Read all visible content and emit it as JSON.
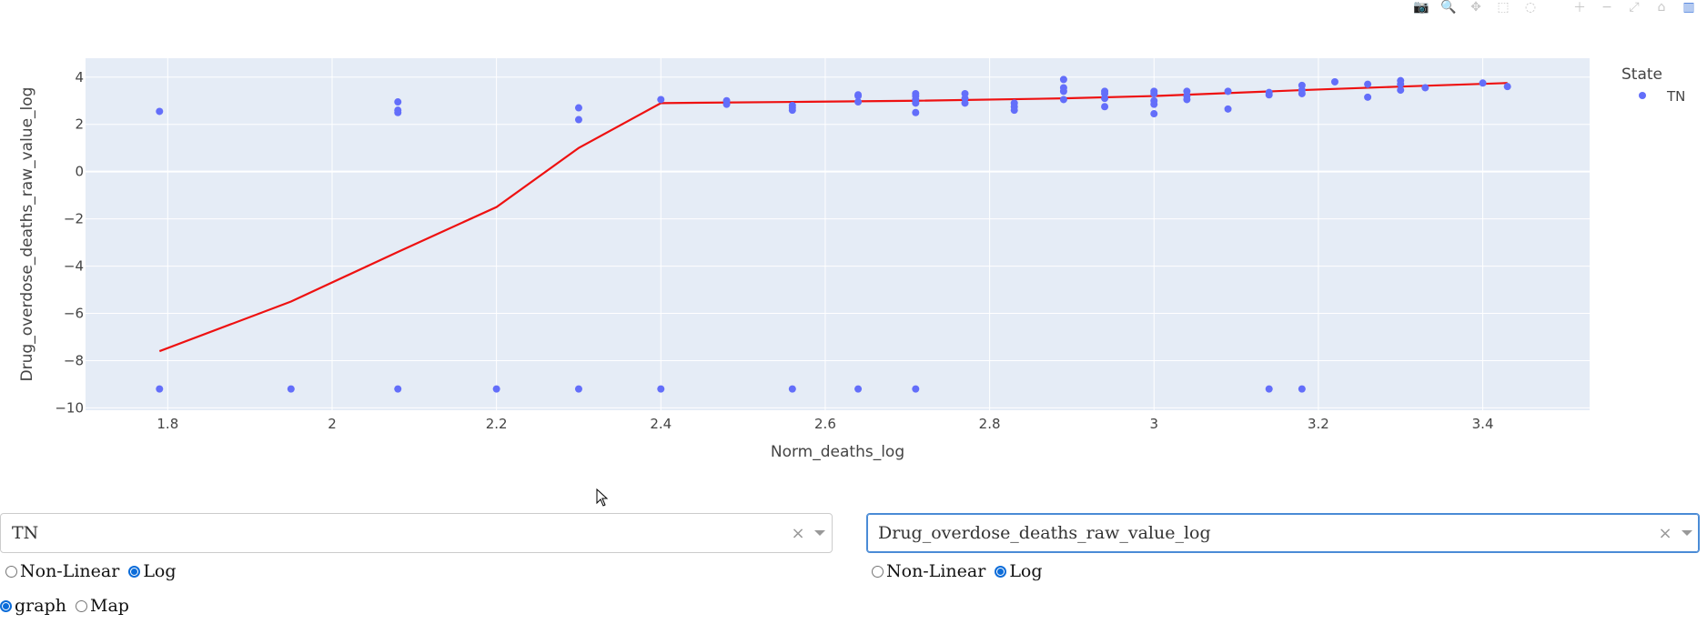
{
  "modebar": {
    "buttons": [
      {
        "name": "camera-icon",
        "glyph": "📷"
      },
      {
        "name": "zoom-icon",
        "glyph": "🔍"
      },
      {
        "name": "pan-icon",
        "glyph": "✥"
      },
      {
        "name": "box-select-icon",
        "glyph": "⬚"
      },
      {
        "name": "lasso-icon",
        "glyph": "◌"
      },
      {
        "name": "zoom-in-icon",
        "glyph": "＋"
      },
      {
        "name": "zoom-out-icon",
        "glyph": "−"
      },
      {
        "name": "autoscale-icon",
        "glyph": "⤢"
      },
      {
        "name": "reset-axes-icon",
        "glyph": "⌂"
      },
      {
        "name": "plotly-logo-icon",
        "glyph": "▥"
      }
    ]
  },
  "chart_data": {
    "type": "scatter",
    "title": "",
    "xlabel": "Norm_deaths_log",
    "ylabel": "Drug_overdose_deaths_raw_value_log",
    "xlim": [
      1.7,
      3.53
    ],
    "ylim": [
      -10.1,
      4.8
    ],
    "x_ticks": [
      1.8,
      2,
      2.2,
      2.4,
      2.6,
      2.8,
      3,
      3.2,
      3.4
    ],
    "y_ticks": [
      4,
      2,
      0,
      -2,
      -4,
      -6,
      -8,
      -10
    ],
    "x_tick_labels": [
      "1.8",
      "2",
      "2.2",
      "2.4",
      "2.6",
      "2.8",
      "3",
      "3.2",
      "3.4"
    ],
    "y_tick_labels": [
      "4",
      "2",
      "0",
      "−2",
      "−4",
      "−6",
      "−8",
      "−10"
    ],
    "grid": true,
    "legend": {
      "title": "State",
      "placement": "top-right",
      "entries": [
        "TN"
      ]
    },
    "colors": {
      "points": "#636efa",
      "line": "#ee1111",
      "plot_bg": "#e5ecf6"
    },
    "series": [
      {
        "name": "TN",
        "mode": "markers",
        "points": [
          [
            1.79,
            2.55
          ],
          [
            1.79,
            -9.2
          ],
          [
            1.95,
            -9.2
          ],
          [
            2.08,
            2.95
          ],
          [
            2.08,
            2.6
          ],
          [
            2.08,
            2.5
          ],
          [
            2.08,
            -9.2
          ],
          [
            2.2,
            -9.2
          ],
          [
            2.3,
            2.7
          ],
          [
            2.3,
            2.2
          ],
          [
            2.3,
            -9.2
          ],
          [
            2.4,
            3.05
          ],
          [
            2.4,
            -9.2
          ],
          [
            2.48,
            3.0
          ],
          [
            2.48,
            2.85
          ],
          [
            2.56,
            2.8
          ],
          [
            2.56,
            2.7
          ],
          [
            2.56,
            2.6
          ],
          [
            2.56,
            -9.2
          ],
          [
            2.64,
            3.25
          ],
          [
            2.64,
            3.2
          ],
          [
            2.64,
            2.95
          ],
          [
            2.64,
            -9.2
          ],
          [
            2.71,
            3.3
          ],
          [
            2.71,
            3.2
          ],
          [
            2.71,
            3.05
          ],
          [
            2.71,
            2.9
          ],
          [
            2.71,
            2.5
          ],
          [
            2.71,
            -9.2
          ],
          [
            2.77,
            3.3
          ],
          [
            2.77,
            3.1
          ],
          [
            2.77,
            2.9
          ],
          [
            2.83,
            2.9
          ],
          [
            2.83,
            2.75
          ],
          [
            2.83,
            2.6
          ],
          [
            2.89,
            3.9
          ],
          [
            2.89,
            3.55
          ],
          [
            2.89,
            3.4
          ],
          [
            2.89,
            3.05
          ],
          [
            2.94,
            3.4
          ],
          [
            2.94,
            3.3
          ],
          [
            2.94,
            3.1
          ],
          [
            2.94,
            2.75
          ],
          [
            3.0,
            3.4
          ],
          [
            3.0,
            3.3
          ],
          [
            3.0,
            3.0
          ],
          [
            3.0,
            2.85
          ],
          [
            3.0,
            2.45
          ],
          [
            3.04,
            3.4
          ],
          [
            3.04,
            3.2
          ],
          [
            3.04,
            3.05
          ],
          [
            3.09,
            3.4
          ],
          [
            3.09,
            2.65
          ],
          [
            3.14,
            3.35
          ],
          [
            3.14,
            3.25
          ],
          [
            3.14,
            -9.2
          ],
          [
            3.18,
            3.65
          ],
          [
            3.18,
            3.45
          ],
          [
            3.18,
            3.3
          ],
          [
            3.18,
            -9.2
          ],
          [
            3.22,
            3.8
          ],
          [
            3.26,
            3.7
          ],
          [
            3.26,
            3.15
          ],
          [
            3.3,
            3.85
          ],
          [
            3.3,
            3.7
          ],
          [
            3.3,
            3.45
          ],
          [
            3.33,
            3.55
          ],
          [
            3.4,
            3.75
          ],
          [
            3.43,
            3.6
          ]
        ]
      },
      {
        "name": "",
        "mode": "lines",
        "points": [
          [
            1.79,
            -7.6
          ],
          [
            1.95,
            -5.5
          ],
          [
            2.08,
            -3.4
          ],
          [
            2.2,
            -1.5
          ],
          [
            2.3,
            1.0
          ],
          [
            2.4,
            2.9
          ],
          [
            2.56,
            2.95
          ],
          [
            2.71,
            3.0
          ],
          [
            2.89,
            3.1
          ],
          [
            3.0,
            3.2
          ],
          [
            3.18,
            3.45
          ],
          [
            3.3,
            3.6
          ],
          [
            3.43,
            3.75
          ]
        ]
      }
    ]
  },
  "controls": {
    "left": {
      "dropdown_value": "TN",
      "scale_options": [
        "Non-Linear",
        "Log"
      ],
      "scale_selected": "Log",
      "view_options": [
        "graph",
        "Map"
      ],
      "view_selected": "graph"
    },
    "right": {
      "dropdown_value": "Drug_overdose_deaths_raw_value_log",
      "scale_options": [
        "Non-Linear",
        "Log"
      ],
      "scale_selected": "Log"
    },
    "clear_glyph": "×"
  }
}
